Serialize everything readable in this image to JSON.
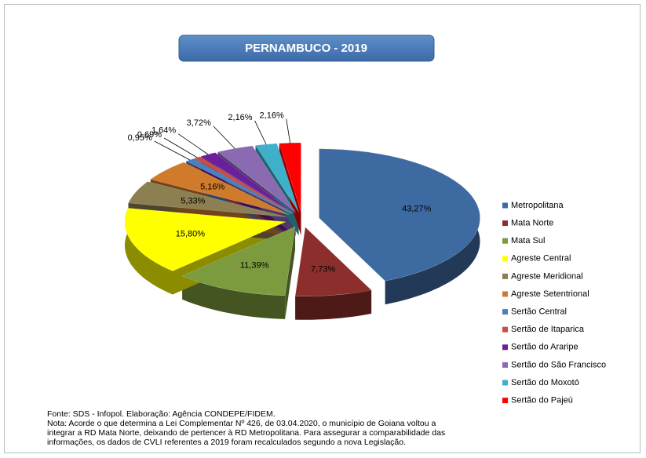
{
  "chart_data": {
    "type": "pie",
    "title": "PERNAMBUCO - 2019",
    "categories": [
      "Metropolitana",
      "Mata Norte",
      "Mata Sul",
      "Agreste Central",
      "Agreste Meridional",
      "Agreste Setentrional",
      "Sertão Central",
      "Sertão de Itaparica",
      "Sertão do Araripe",
      "Sertão do São Francisco",
      "Sertão do Moxotó",
      "Sertão do Pajeú"
    ],
    "values": [
      43.27,
      7.73,
      11.39,
      15.8,
      5.33,
      5.16,
      0.95,
      0.69,
      1.64,
      3.72,
      2.16,
      2.16
    ],
    "value_labels": [
      "43,27%",
      "7,73%",
      "11,39%",
      "15,80%",
      "5,33%",
      "5,16%",
      "0,95%",
      "0,69%",
      "1,64%",
      "3,72%",
      "2,16%",
      "2,16%"
    ],
    "colors": [
      "#3d6aa0",
      "#8c2f2c",
      "#7c9a3e",
      "#ffff00",
      "#8c8052",
      "#d07b2c",
      "#4a7fc0",
      "#cf4a42",
      "#6b1f9c",
      "#8a6bb2",
      "#3eb0c9",
      "#ff0000"
    ],
    "legend": "right",
    "source": "Fonte: SDS - Infopol.  Elaboração: Agência CONDEPE/FIDEM.",
    "note": [
      "Nota: Acorde o que determina a Lei  Complementar Nº 426, de 03.04.2020, o município de Goiana voltou a",
      "integrar a RD Mata Norte, deixando de pertencer à RD Metropolitana. Para assegurar a comparabilidade das",
      "informações, os dados de CVLI referentes a 2019 foram recalculados segundo a nova Legislação."
    ]
  }
}
